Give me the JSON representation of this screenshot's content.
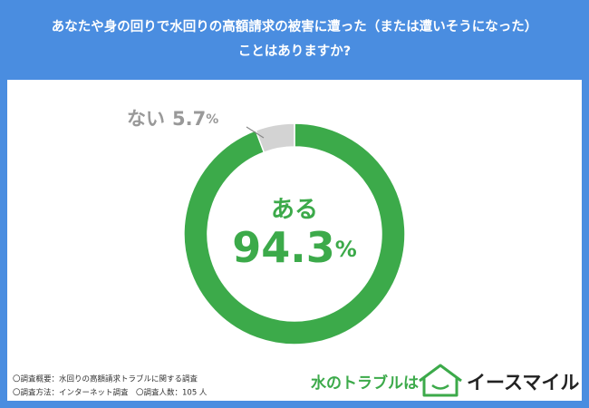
{
  "chart_data": {
    "type": "donut",
    "title": [
      "あなたや身の回りで水回りの高額請求の被害に遭った（または遭いそうになった）",
      "ことはありますか?"
    ],
    "categories": [
      "ある",
      "ない"
    ],
    "values": [
      94.3,
      5.7
    ],
    "unit": "%",
    "colors": [
      "#3caa4a",
      "#d3d3d3"
    ]
  },
  "footnotes": [
    "〇調査概要：水回りの高額請求トラブルに関する調査",
    "〇調査方法：インターネット調査",
    "〇調査人数：105 人"
  ],
  "logo": {
    "tagline": "水のトラブルは",
    "brand": "イースマイル"
  }
}
